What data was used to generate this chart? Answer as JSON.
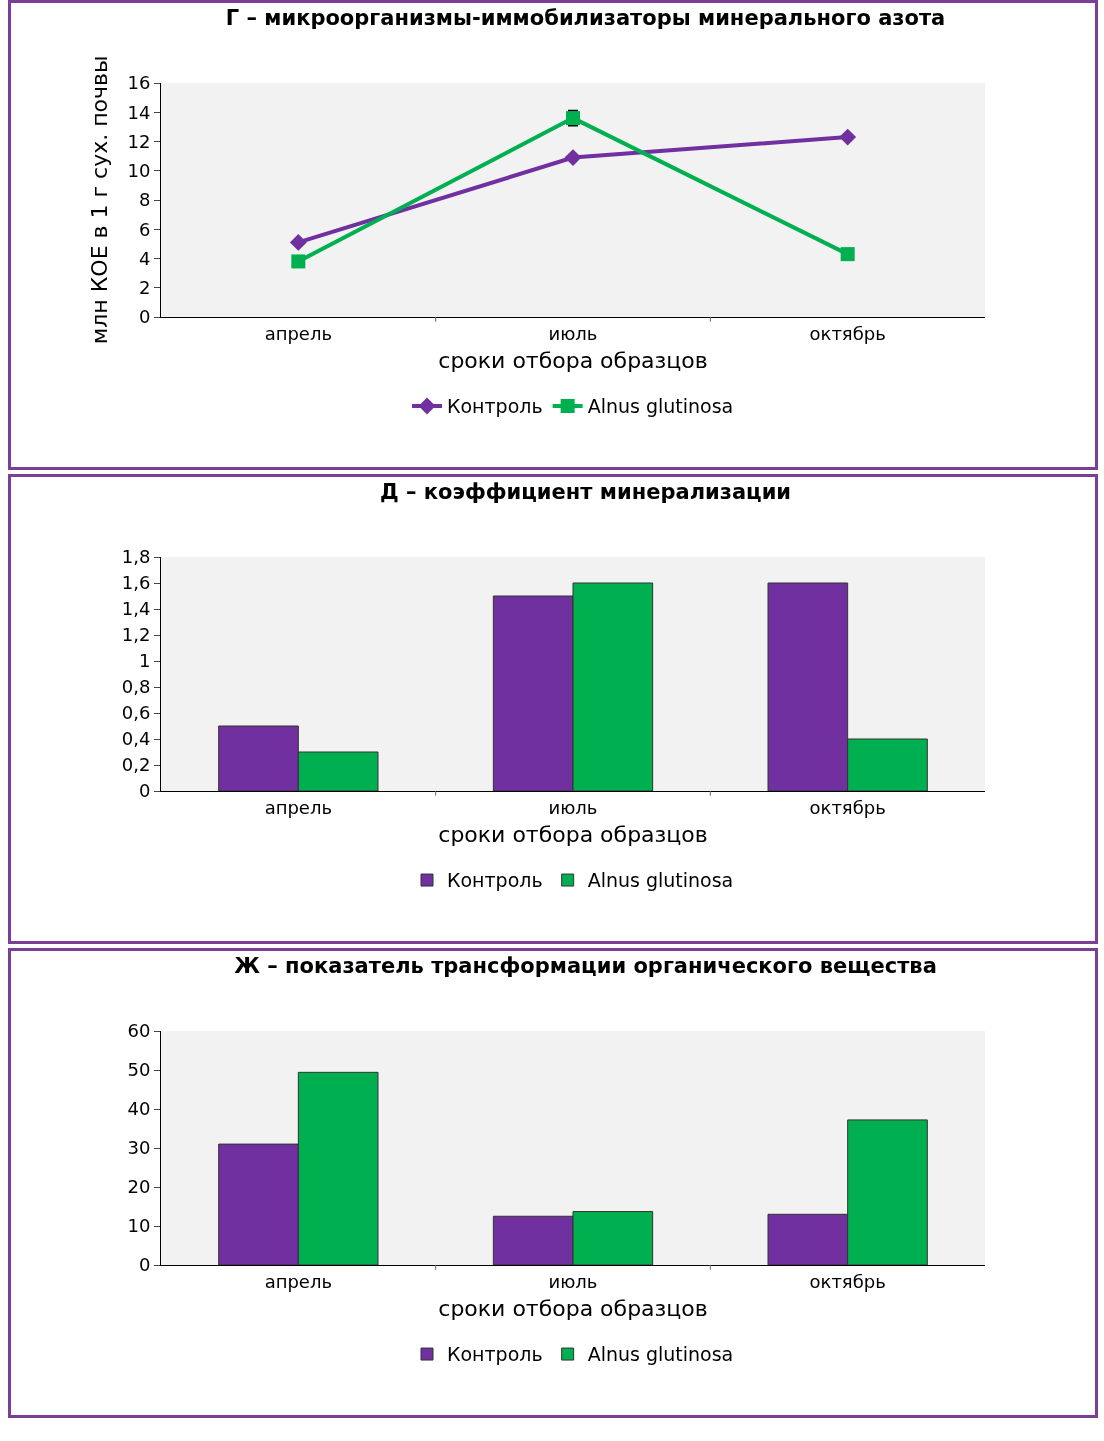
{
  "chart_data": [
    {
      "type": "line",
      "title": "Г – микроорганизмы-иммобилизаторы минерального азота",
      "xlabel": "сроки отбора образцов",
      "ylabel": "млн КОЕ в 1 г сух. почвы",
      "categories": [
        "апрель",
        "июль",
        "октябрь"
      ],
      "ylim": [
        0,
        16
      ],
      "yticks": [
        0,
        2,
        4,
        6,
        8,
        10,
        12,
        14,
        16
      ],
      "grid": false,
      "legend": "bottom",
      "series": [
        {
          "name": "Контроль",
          "color": "#7030a0",
          "marker": "diamond",
          "values": [
            5.1,
            10.9,
            12.3
          ]
        },
        {
          "name": "Alnus glutinosa",
          "color": "#00b050",
          "marker": "square",
          "values": [
            3.8,
            13.6,
            4.3
          ],
          "errors": [
            null,
            0.5,
            null
          ]
        }
      ]
    },
    {
      "type": "bar",
      "title": "Д – коэффициент минерализации",
      "xlabel": "сроки отбора образцов",
      "categories": [
        "апрель",
        "июль",
        "октябрь"
      ],
      "ylim": [
        0,
        1.8
      ],
      "yticks": [
        0,
        {
          "value": 0.2,
          "label": "0,2"
        },
        {
          "value": 0.4,
          "label": "0,4"
        },
        {
          "value": 0.6,
          "label": "0,6"
        },
        {
          "value": 0.8,
          "label": "0,8"
        },
        1,
        {
          "value": 1.2,
          "label": "1,2"
        },
        {
          "value": 1.4,
          "label": "1,4"
        },
        {
          "value": 1.6,
          "label": "1,6"
        },
        {
          "value": 1.8,
          "label": "1,8"
        }
      ],
      "grid": false,
      "legend": "bottom",
      "series": [
        {
          "name": "Контроль",
          "color": "#7030a0",
          "values": [
            0.5,
            1.5,
            1.6
          ]
        },
        {
          "name": "Alnus glutinosa",
          "color": "#00b050",
          "values": [
            0.3,
            1.6,
            0.4
          ]
        }
      ]
    },
    {
      "type": "bar",
      "title": "Ж – показатель трансформации органического вещества",
      "xlabel": "сроки отбора образцов",
      "categories": [
        "апрель",
        "июль",
        "октябрь"
      ],
      "ylim": [
        0,
        60
      ],
      "yticks": [
        0,
        10,
        20,
        30,
        40,
        50,
        60
      ],
      "grid": false,
      "legend": "bottom",
      "series": [
        {
          "name": "Контроль",
          "color": "#7030a0",
          "values": [
            31,
            12.5,
            13
          ]
        },
        {
          "name": "Alnus glutinosa",
          "color": "#00b050",
          "values": [
            49.4,
            13.7,
            37.2
          ]
        }
      ]
    }
  ]
}
